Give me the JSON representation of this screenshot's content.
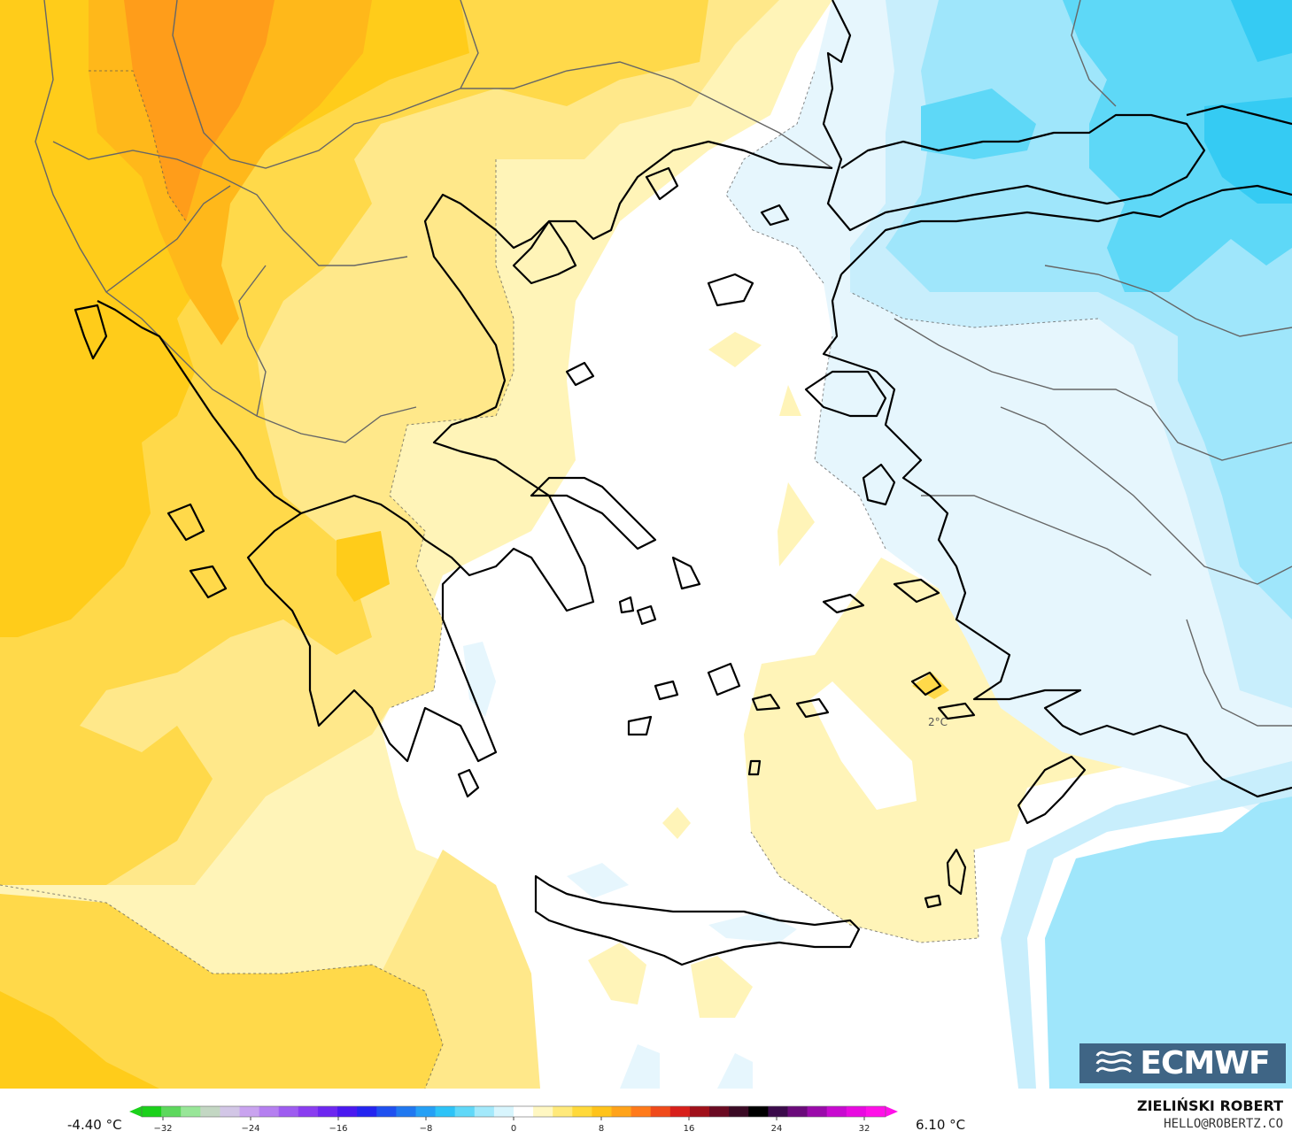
{
  "colors": {
    "sea_white": "#ffffff",
    "pale_yellow": "#fff4b8",
    "yellow_light": "#ffe88a",
    "yellow": "#ffd94a",
    "gold": "#ffcc1a",
    "orange_light": "#ffb81a",
    "orange": "#ff9d1a",
    "blue_very_pale": "#e6f6fd",
    "blue_pale": "#c8eefc",
    "cyan_light": "#9fe6fb",
    "cyan": "#5ed8f7",
    "cyan_deep": "#35cbf3",
    "coastline": "#000000",
    "border": "#555555",
    "logo_bg": "#3f6585"
  },
  "map": {
    "center_label": "2°C",
    "min_label": "-4.40 °C",
    "max_label": "6.10 °C"
  },
  "colorbar": {
    "tick_labels": [
      "−32",
      "−24",
      "−16",
      "−8",
      "0",
      "8",
      "16",
      "24",
      "32"
    ],
    "colors": [
      "#1bd11b",
      "#5dd85d",
      "#98e698",
      "#c3d7c3",
      "#d2c6e6",
      "#c9a3ef",
      "#b57ff0",
      "#9e5cf0",
      "#8a3df0",
      "#6d27f0",
      "#4a18f0",
      "#2424f0",
      "#1f50f0",
      "#2078f0",
      "#25a0f5",
      "#2dc3f7",
      "#60d8f8",
      "#a3e9fb",
      "#d8f5fd",
      "#ffffff",
      "#fff7c2",
      "#ffe97a",
      "#ffd93a",
      "#ffc31a",
      "#ffa31a",
      "#ff7a1a",
      "#f04a1a",
      "#d81f1a",
      "#a0101a",
      "#6a0a22",
      "#3a0a24",
      "#000000",
      "#3a0a4a",
      "#6a0a7a",
      "#9a0aaa",
      "#c80ad0",
      "#e80ae0",
      "#ff10e8"
    ]
  },
  "branding": {
    "logo_text": "ECMWF",
    "author": "ZIELIŃSKI ROBERT",
    "contact": "HELLO@ROBERTZ.CO"
  }
}
